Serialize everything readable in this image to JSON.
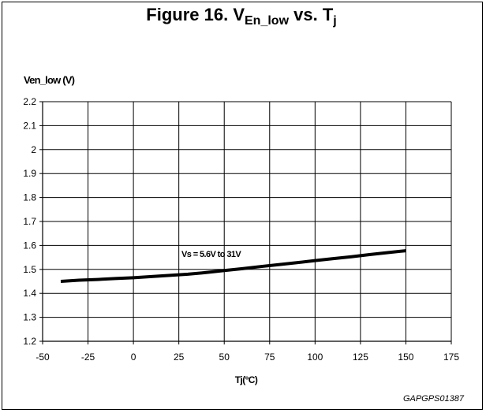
{
  "title": {
    "prefix": "Figure 16. V",
    "sub1": "En_low",
    "mid": " vs. T",
    "sub2": "j"
  },
  "footer_code": "GAPGPS01387",
  "chart_data": {
    "type": "line",
    "title": "Figure 16. VEn_low vs. Tj",
    "xlabel": "Tj(°C)",
    "ylabel": "Ven_low (V)",
    "xlim": [
      -50,
      175
    ],
    "ylim": [
      1.2,
      2.2
    ],
    "x_ticks": [
      "-50",
      "-25",
      "0",
      "25",
      "50",
      "75",
      "100",
      "125",
      "150",
      "175"
    ],
    "y_ticks": [
      "2.2",
      "2.1",
      "2",
      "1.9",
      "1.8",
      "1.7",
      "1.6",
      "1.5",
      "1.4",
      "1.3",
      "1.2"
    ],
    "grid": true,
    "series": [
      {
        "name": "Vs = 5.6V to 31V",
        "x": [
          -40,
          -30,
          -20,
          -10,
          0,
          10,
          20,
          30,
          40,
          50,
          60,
          70,
          80,
          90,
          100,
          110,
          120,
          130,
          140,
          150
        ],
        "y": [
          1.45,
          1.455,
          1.458,
          1.462,
          1.465,
          1.47,
          1.475,
          1.48,
          1.487,
          1.495,
          1.503,
          1.512,
          1.52,
          1.528,
          1.537,
          1.545,
          1.553,
          1.562,
          1.57,
          1.578
        ]
      }
    ],
    "annotations": [
      "Vs = 5.6V to 31V"
    ]
  }
}
